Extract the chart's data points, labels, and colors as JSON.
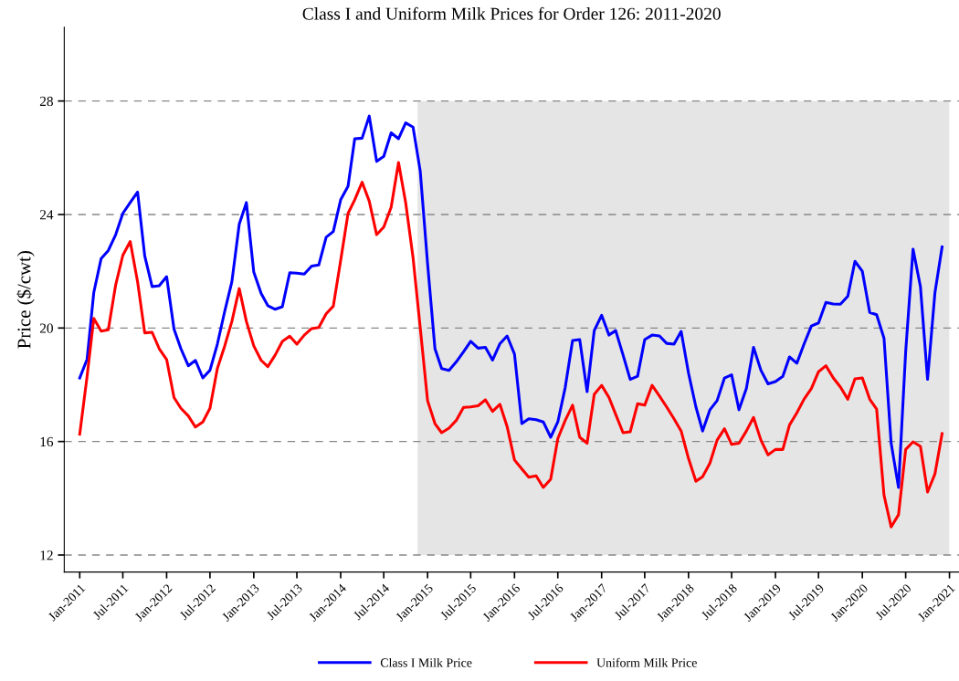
{
  "chart_data": {
    "type": "line",
    "title": "Class I and Uniform Milk Prices for Order 126: 2011-2020",
    "ylabel": "Price ($/cwt)",
    "x": [
      "2011-01",
      "2011-02",
      "2011-03",
      "2011-04",
      "2011-05",
      "2011-06",
      "2011-07",
      "2011-08",
      "2011-09",
      "2011-10",
      "2011-11",
      "2011-12",
      "2012-01",
      "2012-02",
      "2012-03",
      "2012-04",
      "2012-05",
      "2012-06",
      "2012-07",
      "2012-08",
      "2012-09",
      "2012-10",
      "2012-11",
      "2012-12",
      "2013-01",
      "2013-02",
      "2013-03",
      "2013-04",
      "2013-05",
      "2013-06",
      "2013-07",
      "2013-08",
      "2013-09",
      "2013-10",
      "2013-11",
      "2013-12",
      "2014-01",
      "2014-02",
      "2014-03",
      "2014-04",
      "2014-05",
      "2014-06",
      "2014-07",
      "2014-08",
      "2014-09",
      "2014-10",
      "2014-11",
      "2014-12",
      "2015-01",
      "2015-02",
      "2015-03",
      "2015-04",
      "2015-05",
      "2015-06",
      "2015-07",
      "2015-08",
      "2015-09",
      "2015-10",
      "2015-11",
      "2015-12",
      "2016-01",
      "2016-02",
      "2016-03",
      "2016-04",
      "2016-05",
      "2016-06",
      "2016-07",
      "2016-08",
      "2016-09",
      "2016-10",
      "2016-11",
      "2016-12",
      "2017-01",
      "2017-02",
      "2017-03",
      "2017-04",
      "2017-05",
      "2017-06",
      "2017-07",
      "2017-08",
      "2017-09",
      "2017-10",
      "2017-11",
      "2017-12",
      "2018-01",
      "2018-02",
      "2018-03",
      "2018-04",
      "2018-05",
      "2018-06",
      "2018-07",
      "2018-08",
      "2018-09",
      "2018-10",
      "2018-11",
      "2018-12",
      "2019-01",
      "2019-02",
      "2019-03",
      "2019-04",
      "2019-05",
      "2019-06",
      "2019-07",
      "2019-08",
      "2019-09",
      "2019-10",
      "2019-11",
      "2019-12",
      "2020-01",
      "2020-02",
      "2020-03",
      "2020-04",
      "2020-05",
      "2020-06",
      "2020-07",
      "2020-08",
      "2020-09",
      "2020-10",
      "2020-11",
      "2020-12"
    ],
    "series": [
      {
        "name": "Class I Milk Price",
        "color": "#0000ff",
        "values": [
          18.24,
          18.9,
          21.25,
          22.45,
          22.73,
          23.29,
          24.04,
          24.42,
          24.79,
          22.54,
          21.46,
          21.49,
          21.81,
          19.96,
          19.27,
          18.67,
          18.86,
          18.24,
          18.51,
          19.43,
          20.59,
          21.63,
          23.66,
          24.42,
          21.97,
          21.22,
          20.79,
          20.66,
          20.75,
          21.95,
          21.93,
          21.9,
          22.18,
          22.22,
          23.2,
          23.4,
          24.52,
          25.0,
          26.67,
          26.69,
          27.47,
          25.87,
          26.05,
          26.88,
          26.67,
          27.23,
          27.08,
          25.54,
          22.27,
          19.27,
          18.57,
          18.51,
          18.8,
          19.16,
          19.53,
          19.29,
          19.32,
          18.87,
          19.45,
          19.72,
          19.08,
          16.63,
          16.8,
          16.77,
          16.69,
          16.15,
          16.69,
          17.9,
          19.56,
          19.59,
          17.76,
          19.91,
          20.45,
          19.75,
          19.91,
          19.05,
          18.19,
          18.3,
          19.59,
          19.75,
          19.72,
          19.46,
          19.43,
          19.88,
          18.41,
          17.22,
          16.37,
          17.12,
          17.44,
          18.24,
          18.35,
          17.12,
          17.87,
          19.32,
          18.51,
          18.03,
          18.11,
          18.3,
          18.98,
          18.76,
          19.43,
          20.07,
          20.18,
          20.9,
          20.85,
          20.84,
          21.12,
          22.35,
          22.0,
          20.55,
          20.47,
          19.64,
          15.94,
          14.38,
          19.16,
          22.78,
          21.46,
          18.19,
          21.25,
          22.86
        ]
      },
      {
        "name": "Uniform Milk Price",
        "color": "#ff0000",
        "values": [
          16.26,
          18.3,
          20.34,
          19.89,
          19.94,
          21.52,
          22.56,
          23.05,
          21.63,
          19.83,
          19.85,
          19.27,
          18.89,
          17.55,
          17.17,
          16.9,
          16.51,
          16.69,
          17.17,
          18.57,
          19.37,
          20.23,
          21.39,
          20.23,
          19.37,
          18.86,
          18.64,
          19.05,
          19.53,
          19.71,
          19.43,
          19.75,
          19.98,
          20.02,
          20.5,
          20.77,
          22.38,
          24.04,
          24.52,
          25.14,
          24.47,
          23.29,
          23.56,
          24.26,
          25.83,
          24.42,
          22.48,
          20.02,
          17.44,
          16.63,
          16.31,
          16.47,
          16.74,
          17.2,
          17.22,
          17.26,
          17.47,
          17.06,
          17.31,
          16.53,
          15.35,
          15.03,
          14.74,
          14.79,
          14.38,
          14.67,
          16.1,
          16.74,
          17.28,
          16.15,
          15.94,
          17.66,
          17.98,
          17.55,
          16.96,
          16.31,
          16.34,
          17.33,
          17.28,
          17.98,
          17.6,
          17.22,
          16.8,
          16.37,
          15.4,
          14.6,
          14.76,
          15.24,
          16.05,
          16.45,
          15.9,
          15.94,
          16.37,
          16.85,
          16.05,
          15.53,
          15.72,
          15.72,
          16.58,
          17.01,
          17.49,
          17.87,
          18.46,
          18.67,
          18.24,
          17.92,
          17.49,
          18.21,
          18.24,
          17.49,
          17.14,
          14.11,
          12.99,
          13.42,
          15.72,
          15.99,
          15.83,
          14.22,
          14.86,
          16.28
        ]
      }
    ],
    "xlim": [
      "2010-10-28",
      "2021-02-10"
    ],
    "xticks": [
      {
        "value": "2011-01",
        "label": "Jan-2011"
      },
      {
        "value": "2011-07",
        "label": "Jul-2011"
      },
      {
        "value": "2012-01",
        "label": "Jan-2012"
      },
      {
        "value": "2012-07",
        "label": "Jul-2012"
      },
      {
        "value": "2013-01",
        "label": "Jan-2013"
      },
      {
        "value": "2013-07",
        "label": "Jul-2013"
      },
      {
        "value": "2014-01",
        "label": "Jan-2014"
      },
      {
        "value": "2014-07",
        "label": "Jul-2014"
      },
      {
        "value": "2015-01",
        "label": "Jan-2015"
      },
      {
        "value": "2015-07",
        "label": "Jul-2015"
      },
      {
        "value": "2016-01",
        "label": "Jan-2016"
      },
      {
        "value": "2016-07",
        "label": "Jul-2016"
      },
      {
        "value": "2017-01",
        "label": "Jan-2017"
      },
      {
        "value": "2017-07",
        "label": "Jul-2017"
      },
      {
        "value": "2018-01",
        "label": "Jan-2018"
      },
      {
        "value": "2018-07",
        "label": "Jul-2018"
      },
      {
        "value": "2019-01",
        "label": "Jan-2019"
      },
      {
        "value": "2019-07",
        "label": "Jul-2019"
      },
      {
        "value": "2020-01",
        "label": "Jan-2020"
      },
      {
        "value": "2020-07",
        "label": "Jul-2020"
      },
      {
        "value": "2021-01",
        "label": "Jan-2021"
      }
    ],
    "ylim": [
      11.4,
      30.6
    ],
    "yticks": [
      12,
      16,
      20,
      24,
      28
    ],
    "bands": [
      {
        "axis": "x",
        "from": "2014-11-20",
        "to": "2020-12-31",
        "color": "#e5e5e5"
      }
    ],
    "grid": "y",
    "legend": "bottom",
    "marker": "none",
    "line_style": "solid"
  }
}
